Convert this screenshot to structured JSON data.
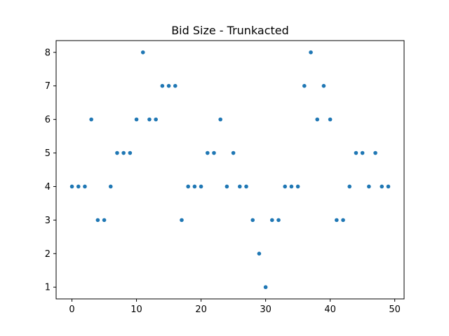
{
  "chart_data": {
    "type": "scatter",
    "title": "Bid Size - Trunkacted",
    "xlabel": "",
    "ylabel": "",
    "xlim": [
      -2.45,
      51.45
    ],
    "ylim": [
      0.65,
      8.35
    ],
    "xticks": [
      0,
      10,
      20,
      30,
      40,
      50
    ],
    "yticks": [
      1,
      2,
      3,
      4,
      5,
      6,
      7,
      8
    ],
    "grid": false,
    "marker_color": "#1f77b4",
    "x": [
      0,
      1,
      2,
      3,
      4,
      5,
      6,
      7,
      8,
      9,
      10,
      11,
      12,
      13,
      14,
      15,
      16,
      17,
      18,
      19,
      20,
      21,
      22,
      23,
      24,
      25,
      26,
      27,
      28,
      29,
      30,
      31,
      32,
      33,
      34,
      35,
      36,
      37,
      38,
      39,
      40,
      41,
      42,
      43,
      44,
      45,
      46,
      47,
      48,
      49
    ],
    "y": [
      4,
      4,
      4,
      6,
      3,
      3,
      4,
      5,
      5,
      5,
      6,
      8,
      6,
      6,
      7,
      7,
      7,
      3,
      4,
      4,
      4,
      5,
      5,
      6,
      4,
      5,
      4,
      4,
      3,
      2,
      1,
      3,
      3,
      4,
      4,
      4,
      7,
      8,
      6,
      7,
      6,
      3,
      3,
      4,
      5,
      5,
      4,
      5,
      4,
      4
    ]
  }
}
